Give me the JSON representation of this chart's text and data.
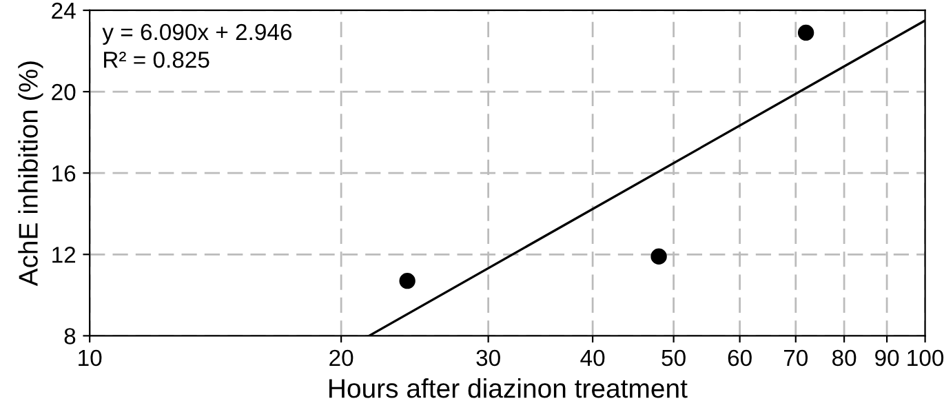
{
  "chart_data": {
    "type": "scatter",
    "xlabel": "Hours after diazinon treatment",
    "ylabel": "AchE inhibition (%)",
    "annotations": [
      "y = 6.090x + 2.946",
      "R² = 0.825"
    ],
    "series": [
      {
        "color": "#000000",
        "marker": "circle",
        "x": [
          24,
          48,
          72
        ],
        "values": [
          10.7,
          11.9,
          22.9
        ]
      },
      {
        "type": "line",
        "color": "#000000",
        "line_style": "solid",
        "marker": "none",
        "x": [
          21.6,
          100
        ],
        "values": [
          8,
          23.5
        ]
      }
    ],
    "log": "x",
    "xlim": [
      10,
      100
    ],
    "xticks": [
      10,
      20,
      30,
      40,
      50,
      60,
      70,
      80,
      90,
      100
    ],
    "ylim": [
      8,
      24
    ],
    "yticks": [
      8,
      12,
      16,
      20,
      24
    ],
    "grid": true,
    "legend": false
  }
}
